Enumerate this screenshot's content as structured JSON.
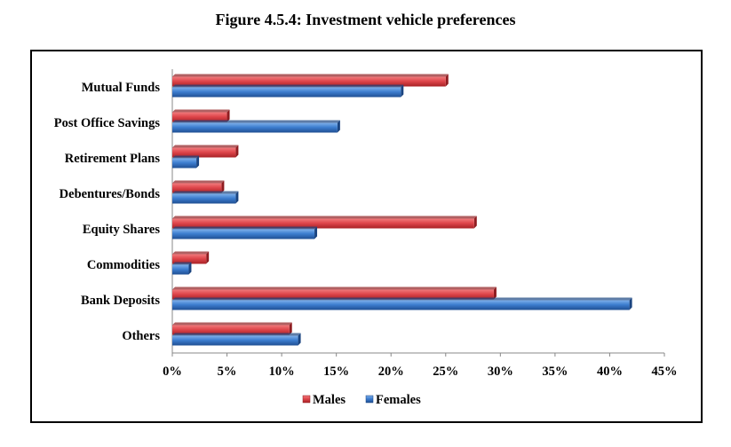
{
  "figure_title": "Figure 4.5.4: Investment vehicle preferences",
  "chart_data": {
    "type": "bar",
    "orientation": "horizontal",
    "title": "Figure 4.5.4: Investment vehicle preferences",
    "xlabel": "",
    "ylabel": "",
    "xlim": [
      0,
      45
    ],
    "tick_values": [
      0,
      5,
      10,
      15,
      20,
      25,
      30,
      35,
      40,
      45
    ],
    "tick_labels": [
      "0%",
      "5%",
      "10%",
      "15%",
      "20%",
      "25%",
      "30%",
      "35%",
      "40%",
      "45%"
    ],
    "categories": [
      "Mutual Funds",
      "Post Office Savings",
      "Retirement Plans",
      "Debentures/Bonds",
      "Equity Shares",
      "Commodities",
      "Bank Deposits",
      "Others"
    ],
    "series": [
      {
        "name": "Males",
        "color": "#e0474c",
        "values": [
          25,
          5,
          5.8,
          4.5,
          27.6,
          3.1,
          29.4,
          10.7
        ]
      },
      {
        "name": "Females",
        "color": "#3d7ed0",
        "values": [
          20.9,
          15.1,
          2.2,
          5.8,
          13,
          1.5,
          41.8,
          11.5
        ]
      }
    ],
    "legend_position": "bottom",
    "grid": false
  }
}
